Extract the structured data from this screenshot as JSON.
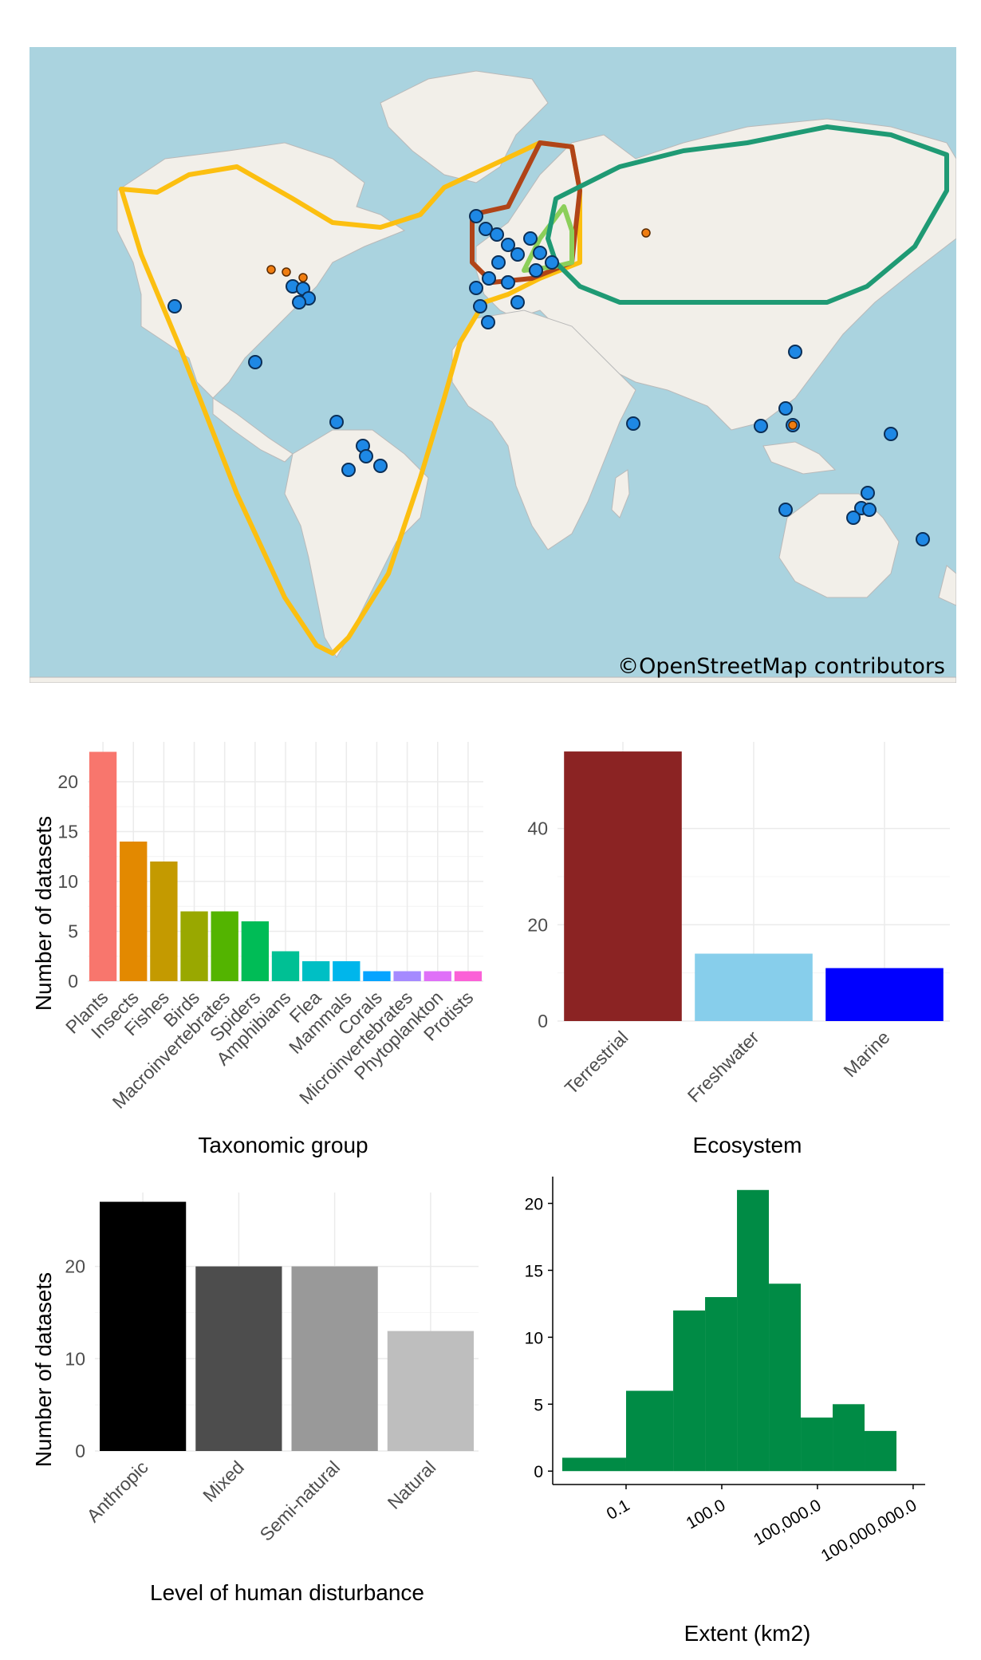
{
  "map": {
    "credit": "©OpenStreetMap contributors",
    "colors": {
      "ocean": "#aad3df",
      "land": "#f2efe9",
      "border": "#c7a6d0",
      "site_blue": "#1e88e5",
      "site_orange": "#f07d10",
      "range_yellow": "#fcbf10",
      "range_brown": "#b04418",
      "range_lightgreen": "#8ccf5a",
      "range_teal": "#1f9a74"
    }
  },
  "chart_data": [
    {
      "type": "bar",
      "categories": [
        "Plants",
        "Insects",
        "Fishes",
        "Birds",
        "Macroinvertebrates",
        "Spiders",
        "Amphibians",
        "Flea",
        "Mammals",
        "Corals",
        "Microinvertebrates",
        "Phytoplankton",
        "Protists"
      ],
      "values": [
        23,
        14,
        12,
        7,
        7,
        6,
        3,
        2,
        2,
        1,
        1,
        1,
        1
      ],
      "colors": [
        "#f8766d",
        "#e38900",
        "#c49a00",
        "#99a800",
        "#53b400",
        "#00bc56",
        "#00c094",
        "#00bfc4",
        "#00b6eb",
        "#06a4ff",
        "#a58aff",
        "#df70f8",
        "#fb61d7"
      ],
      "xlabel": "Taxonomic group",
      "ylabel": "Number of datasets",
      "ylim": [
        0,
        24
      ],
      "yticks": [
        0,
        5,
        10,
        15,
        20
      ],
      "grid": true
    },
    {
      "type": "bar",
      "categories": [
        "Terrestrial",
        "Freshwater",
        "Marine"
      ],
      "values": [
        56,
        14,
        11
      ],
      "colors": [
        "#8b2323",
        "#87ceeb",
        "#0000ff"
      ],
      "xlabel": "Ecosystem",
      "ylabel": "",
      "ylim": [
        0,
        58
      ],
      "yticks": [
        0,
        20,
        40
      ],
      "grid": true
    },
    {
      "type": "bar",
      "categories": [
        "Anthropic",
        "Mixed",
        "Semi-natural",
        "Natural"
      ],
      "values": [
        27,
        20,
        20,
        13
      ],
      "colors": [
        "#000000",
        "#4d4d4d",
        "#999999",
        "#bebebe"
      ],
      "xlabel": "Level of human disturbance",
      "ylabel": "Number of datasets",
      "ylim": [
        0,
        28
      ],
      "yticks": [
        0,
        10,
        20
      ],
      "grid": true
    },
    {
      "type": "bar",
      "subtype": "histogram",
      "scale": "log10",
      "bins": [
        {
          "from": 0.001,
          "to": 0.1,
          "count": 1
        },
        {
          "from": 0.1,
          "to": 3,
          "count": 6
        },
        {
          "from": 3,
          "to": 30,
          "count": 12
        },
        {
          "from": 30,
          "to": 300,
          "count": 13
        },
        {
          "from": 300,
          "to": 3000,
          "count": 21
        },
        {
          "from": 3000,
          "to": 30000,
          "count": 14
        },
        {
          "from": 30000,
          "to": 300000,
          "count": 4
        },
        {
          "from": 300000,
          "to": 3000000,
          "count": 5
        },
        {
          "from": 3000000,
          "to": 30000000,
          "count": 3
        }
      ],
      "color": "#008b45",
      "xlabel": "Extent (km2)",
      "ylabel": "",
      "xticks": [
        {
          "value": 0.1,
          "label": "0.1"
        },
        {
          "value": 100,
          "label": "100.0"
        },
        {
          "value": 100000,
          "label": "100,000.0"
        },
        {
          "value": 100000000,
          "label": "100,000,000.0"
        }
      ],
      "yticks": [
        0,
        5,
        10,
        15,
        20
      ],
      "ylim": [
        0,
        22
      ],
      "grid": false
    }
  ]
}
